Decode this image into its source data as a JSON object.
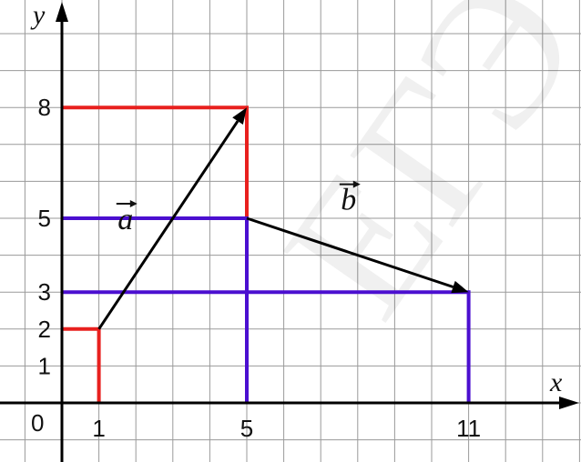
{
  "axes": {
    "x_name": "x",
    "y_name": "y",
    "origin_label": "0"
  },
  "ticks": {
    "x": [
      {
        "value": 1,
        "label": "1"
      },
      {
        "value": 5,
        "label": "5"
      },
      {
        "value": 11,
        "label": "11"
      }
    ],
    "y": [
      {
        "value": 1,
        "label": "1"
      },
      {
        "value": 2,
        "label": "2"
      },
      {
        "value": 3,
        "label": "3"
      },
      {
        "value": 5,
        "label": "5"
      },
      {
        "value": 8,
        "label": "8"
      }
    ]
  },
  "vectors": [
    {
      "id": "a",
      "label": "a",
      "from": [
        1,
        2
      ],
      "to": [
        5,
        8
      ],
      "color": "#000000"
    },
    {
      "id": "b",
      "label": "b",
      "from": [
        5,
        5
      ],
      "to": [
        11,
        3
      ],
      "color": "#000000"
    }
  ],
  "guide_lines": [
    {
      "id": "red-h-2",
      "color": "#e8201e",
      "points": [
        [
          0,
          2
        ],
        [
          1,
          2
        ],
        [
          1,
          0
        ]
      ]
    },
    {
      "id": "red-h-8",
      "color": "#e8201e",
      "points": [
        [
          0,
          8
        ],
        [
          5,
          8
        ],
        [
          5,
          0
        ]
      ]
    },
    {
      "id": "blue-h-5",
      "color": "#4b0fd0",
      "points": [
        [
          0,
          5
        ],
        [
          5,
          5
        ],
        [
          5,
          0
        ]
      ]
    },
    {
      "id": "blue-h-3",
      "color": "#4b0fd0",
      "points": [
        [
          0,
          3
        ],
        [
          11,
          3
        ],
        [
          11,
          0
        ]
      ]
    }
  ],
  "watermark": "ЕГЭ"
}
